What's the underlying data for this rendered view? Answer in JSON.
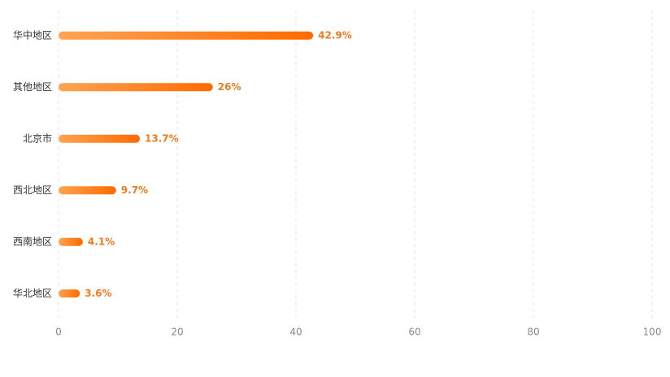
{
  "chart_data": {
    "type": "hbar",
    "categories": [
      "华中地区",
      "其他地区",
      "北京市",
      "西北地区",
      "西南地区",
      "华北地区"
    ],
    "values": [
      42.9,
      26,
      13.7,
      9.7,
      4.1,
      3.6
    ],
    "value_labels": [
      "42.9%",
      "26%",
      "13.7%",
      "9.7%",
      "4.1%",
      "3.6%"
    ],
    "gradient": [
      "#ffa352",
      "#ff6a00"
    ],
    "label_color": "#f07a1e",
    "xlim": [
      0,
      100
    ],
    "xticks": [
      0,
      20,
      40,
      60,
      80,
      100
    ],
    "grid": true
  }
}
